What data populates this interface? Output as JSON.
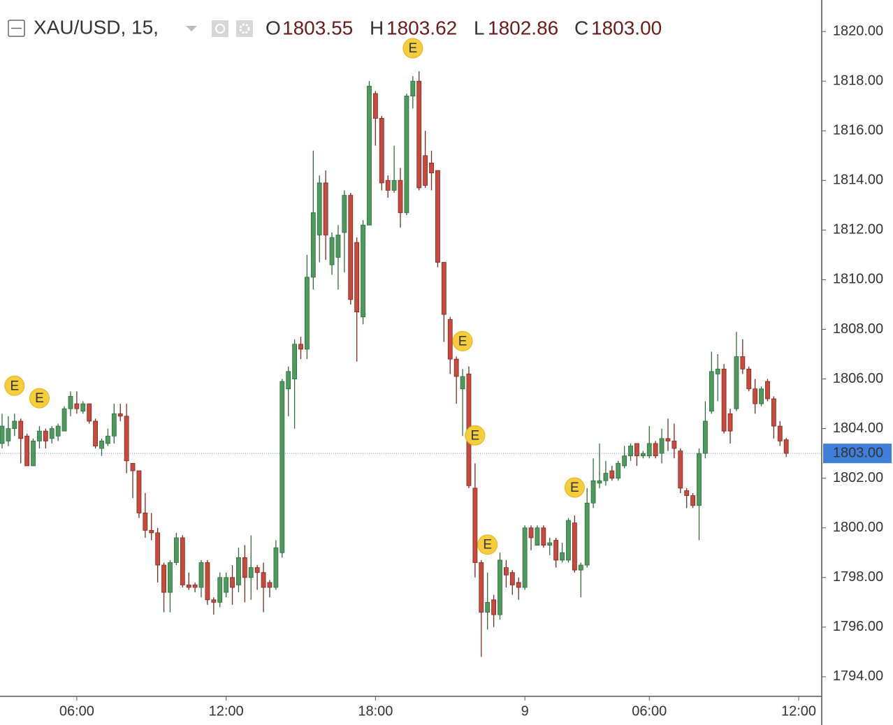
{
  "chart_data": {
    "type": "candlestick",
    "header": {
      "symbol": "XAU/USD, 15,",
      "ohlc": [
        {
          "label": "O",
          "value": "1803.55"
        },
        {
          "label": "H",
          "value": "1803.62"
        },
        {
          "label": "L",
          "value": "1802.86"
        },
        {
          "label": "C",
          "value": "1803.00"
        }
      ]
    },
    "categories": [
      null,
      null,
      null,
      null,
      null,
      null,
      null,
      null,
      null,
      null,
      null,
      null,
      "06:00",
      null,
      null,
      null,
      null,
      null,
      null,
      null,
      null,
      null,
      null,
      null,
      null,
      null,
      null,
      null,
      null,
      null,
      null,
      null,
      null,
      null,
      null,
      null,
      "12:00",
      null,
      null,
      null,
      null,
      null,
      null,
      null,
      null,
      null,
      null,
      null,
      null,
      null,
      null,
      null,
      null,
      null,
      null,
      null,
      null,
      null,
      null,
      null,
      "18:00",
      null,
      null,
      null,
      null,
      null,
      null,
      null,
      null,
      null,
      null,
      null,
      null,
      null,
      null,
      null,
      null,
      null,
      null,
      null,
      null,
      null,
      null,
      null,
      "9",
      null,
      null,
      null,
      null,
      null,
      null,
      null,
      null,
      null,
      null,
      null,
      null,
      null,
      null,
      null,
      null,
      null,
      null,
      null,
      "06:00",
      null,
      null,
      null,
      null,
      null,
      null,
      null,
      null,
      null,
      null,
      null,
      null,
      null,
      null,
      null,
      null,
      null,
      null,
      null,
      null,
      null,
      null,
      null,
      "12:00"
    ],
    "open": [
      1803.4,
      1803.5,
      1804.0,
      1804.3,
      1803.7,
      1802.5,
      1803.5,
      1803.9,
      1803.6,
      1803.7,
      1803.9,
      1804.8,
      1805.0,
      1804.7,
      1805.0,
      1804.3,
      1803.2,
      1803.4,
      1803.7,
      1804.6,
      1804.5,
      1802.6,
      1802.3,
      1800.6,
      1799.9,
      1799.8,
      1798.5,
      1797.4,
      1798.6,
      1799.6,
      1797.7,
      1797.7,
      1797.6,
      1798.6,
      1797.1,
      1797.0,
      1797.4,
      1798.0,
      1797.7,
      1798.8,
      1798.0,
      1798.4,
      1798.2,
      1797.8,
      1797.6,
      1799.0,
      1805.6,
      1806.0,
      1807.4,
      1807.2,
      1810.1,
      1811.8,
      1813.9,
      1810.6,
      1810.9,
      1811.9,
      1813.4,
      1811.5,
      1808.5,
      1812.2,
      1817.5,
      1816.5,
      1814.0,
      1813.6,
      1814.0,
      1812.7,
      1817.4,
      1818.0,
      1815.0,
      1814.7,
      1814.4,
      1810.7,
      1808.4,
      1806.8,
      1805.6,
      1806.2,
      1801.6,
      1798.6,
      1796.6,
      1797.1,
      1796.5,
      1798.4,
      1798.2,
      1797.8,
      1797.6,
      1800.0,
      1799.3,
      1800.0,
      1799.3,
      1799.5,
      1798.7,
      1798.7,
      1800.2,
      1798.3,
      1798.5,
      1801.0,
      1801.8,
      1801.9,
      1802.3,
      1802.0,
      1802.5,
      1802.9,
      1803.4,
      1802.9,
      1802.9,
      1803.4,
      1803.0,
      1803.6,
      1803.5,
      1803.1,
      1801.5,
      1801.3,
      1800.9,
      1803.0,
      1804.7,
      1806.2,
      1806.4,
      1804.6,
      1804.8,
      1806.9,
      1806.4,
      1805.6,
      1805.0,
      1805.9,
      1805.2,
      1804.1,
      1803.55,
      null,
      null
    ],
    "high": [
      1804.6,
      1804.5,
      1804.6,
      1804.4,
      1803.8,
      1803.6,
      1804.1,
      1804.0,
      1804.1,
      1804.2,
      1804.9,
      1805.5,
      1805.5,
      1805.1,
      1805.0,
      1804.4,
      1803.6,
      1804.0,
      1805.0,
      1805.0,
      1805.0,
      1802.6,
      1802.3,
      1801.4,
      1800.6,
      1800.0,
      1798.6,
      1798.7,
      1799.8,
      1799.7,
      1798.2,
      1797.8,
      1798.7,
      1798.7,
      1797.2,
      1798.2,
      1798.2,
      1798.5,
      1799.2,
      1799.3,
      1799.7,
      1798.5,
      1798.6,
      1797.9,
      1799.5,
      1806.0,
      1806.5,
      1807.6,
      1807.7,
      1811.0,
      1815.2,
      1814.2,
      1814.4,
      1811.9,
      1812.2,
      1813.6,
      1813.5,
      1811.7,
      1812.4,
      1818.0,
      1817.6,
      1816.6,
      1814.2,
      1815.4,
      1814.5,
      1817.5,
      1818.2,
      1818.4,
      1816.0,
      1815.2,
      1814.4,
      1810.7,
      1808.5,
      1806.9,
      1806.4,
      1806.5,
      1802.6,
      1798.7,
      1798.2,
      1797.3,
      1799.0,
      1798.7,
      1798.3,
      1798.0,
      1800.1,
      1800.1,
      1800.1,
      1800.1,
      1799.6,
      1799.6,
      1799.4,
      1800.4,
      1800.5,
      1798.6,
      1801.6,
      1802.8,
      1803.4,
      1802.7,
      1802.5,
      1802.7,
      1803.3,
      1803.4,
      1803.4,
      1803.1,
      1804.1,
      1803.5,
      1804.0,
      1804.4,
      1804.2,
      1803.2,
      1801.6,
      1801.4,
      1803.2,
      1805.1,
      1807.1,
      1807.0,
      1806.6,
      1804.8,
      1807.9,
      1807.6,
      1806.5,
      1806.0,
      1805.7,
      1806.0,
      1805.3,
      1804.3,
      1803.62,
      null,
      null
    ],
    "low": [
      1803.2,
      1803.3,
      1803.7,
      1802.6,
      1802.5,
      1802.5,
      1803.2,
      1803.2,
      1803.4,
      1803.5,
      1803.9,
      1804.5,
      1804.6,
      1804.6,
      1804.2,
      1803.2,
      1802.9,
      1803.3,
      1803.4,
      1804.3,
      1802.2,
      1801.2,
      1800.4,
      1799.6,
      1799.5,
      1797.8,
      1796.6,
      1796.6,
      1798.5,
      1797.6,
      1797.5,
      1797.4,
      1797.2,
      1796.9,
      1796.5,
      1796.8,
      1797.2,
      1796.9,
      1797.4,
      1797.0,
      1797.1,
      1797.5,
      1796.6,
      1797.2,
      1797.5,
      1798.8,
      1804.5,
      1804.0,
      1806.8,
      1806.8,
      1809.6,
      1810.7,
      1810.8,
      1810.2,
      1809.6,
      1810.3,
      1809.0,
      1806.7,
      1808.2,
      1812.2,
      1815.4,
      1813.6,
      1813.3,
      1813.5,
      1812.1,
      1812.6,
      1816.9,
      1813.6,
      1813.7,
      1813.6,
      1810.5,
      1807.5,
      1806.2,
      1805.0,
      1803.7,
      1801.6,
      1798.0,
      1794.8,
      1795.9,
      1796.0,
      1796.3,
      1797.6,
      1797.3,
      1797.1,
      1797.5,
      1799.1,
      1799.3,
      1799.2,
      1798.9,
      1798.4,
      1798.6,
      1798.6,
      1798.2,
      1797.2,
      1798.4,
      1800.8,
      1801.6,
      1801.7,
      1801.9,
      1801.9,
      1802.4,
      1802.7,
      1802.5,
      1802.8,
      1802.8,
      1802.8,
      1802.6,
      1803.1,
      1802.8,
      1801.4,
      1800.8,
      1800.8,
      1799.5,
      1802.8,
      1804.6,
      1805.1,
      1803.8,
      1803.4,
      1804.7,
      1806.2,
      1805.5,
      1804.6,
      1804.9,
      1805.1,
      1803.6,
      1803.3,
      1802.86,
      null,
      null
    ],
    "close": [
      1804.1,
      1804.0,
      1804.3,
      1803.6,
      1802.5,
      1803.5,
      1803.9,
      1803.5,
      1804.0,
      1804.1,
      1804.8,
      1805.3,
      1804.8,
      1805.0,
      1804.3,
      1803.3,
      1803.5,
      1803.7,
      1804.6,
      1804.5,
      1802.7,
      1802.3,
      1800.6,
      1799.9,
      1799.8,
      1798.5,
      1797.4,
      1798.6,
      1799.6,
      1797.7,
      1797.6,
      1797.6,
      1798.6,
      1797.1,
      1797.0,
      1798.0,
      1798.0,
      1797.6,
      1798.8,
      1798.0,
      1798.4,
      1798.2,
      1797.6,
      1797.6,
      1799.2,
      1805.9,
      1806.3,
      1807.4,
      1807.2,
      1810.1,
      1812.7,
      1813.9,
      1811.8,
      1811.7,
      1811.8,
      1813.4,
      1809.2,
      1808.7,
      1812.2,
      1817.8,
      1816.5,
      1813.9,
      1813.6,
      1814.0,
      1812.7,
      1817.4,
      1818.0,
      1813.7,
      1813.8,
      1814.3,
      1810.7,
      1808.6,
      1806.8,
      1806.1,
      1806.1,
      1801.7,
      1798.6,
      1796.6,
      1797.0,
      1796.5,
      1798.7,
      1798.1,
      1797.7,
      1797.6,
      1800.0,
      1799.6,
      1800.0,
      1799.3,
      1799.4,
      1798.7,
      1799.0,
      1800.3,
      1798.3,
      1798.5,
      1801.0,
      1801.9,
      1801.9,
      1802.2,
      1802.0,
      1802.6,
      1802.9,
      1803.3,
      1802.9,
      1803.0,
      1803.4,
      1802.9,
      1803.6,
      1803.5,
      1803.2,
      1801.6,
      1801.3,
      1800.9,
      1803.0,
      1804.3,
      1806.3,
      1806.4,
      1803.9,
      1803.9,
      1806.9,
      1806.4,
      1805.6,
      1805.0,
      1805.6,
      1805.2,
      1804.1,
      1803.5,
      1803,
      null,
      null
    ],
    "up_color": "#4e9a5e",
    "down_color": "#c9493d",
    "up_wick_color": "#2f6b3c",
    "down_wick_color": "#7a2a22",
    "ylim": [
      1793.21,
      1821.27
    ],
    "yticks": [
      {
        "value": 1794,
        "label": "1794.00"
      },
      {
        "value": 1796,
        "label": "1796.00"
      },
      {
        "value": 1798,
        "label": "1798.00"
      },
      {
        "value": 1800,
        "label": "1800.00"
      },
      {
        "value": 1802,
        "label": "1802.00"
      },
      {
        "value": 1804,
        "label": "1804.00"
      },
      {
        "value": 1806,
        "label": "1806.00"
      },
      {
        "value": 1808,
        "label": "1808.00"
      },
      {
        "value": 1810,
        "label": "1810.00"
      },
      {
        "value": 1812,
        "label": "1812.00"
      },
      {
        "value": 1814,
        "label": "1814.00"
      },
      {
        "value": 1816,
        "label": "1816.00"
      },
      {
        "value": 1818,
        "label": "1818.00"
      },
      {
        "value": 1820,
        "label": "1820.00"
      }
    ],
    "last_price": {
      "value": 1803,
      "label": "1803.00",
      "color": "#3f7fd9"
    },
    "events": [
      {
        "label": "E",
        "index": 2
      },
      {
        "label": "E",
        "index": 6
      },
      {
        "label": "E",
        "index": 66
      },
      {
        "label": "E",
        "index": 74
      },
      {
        "label": "E",
        "index": 76
      },
      {
        "label": "E",
        "index": 78
      },
      {
        "label": "E",
        "index": 92
      }
    ],
    "grid": false
  }
}
